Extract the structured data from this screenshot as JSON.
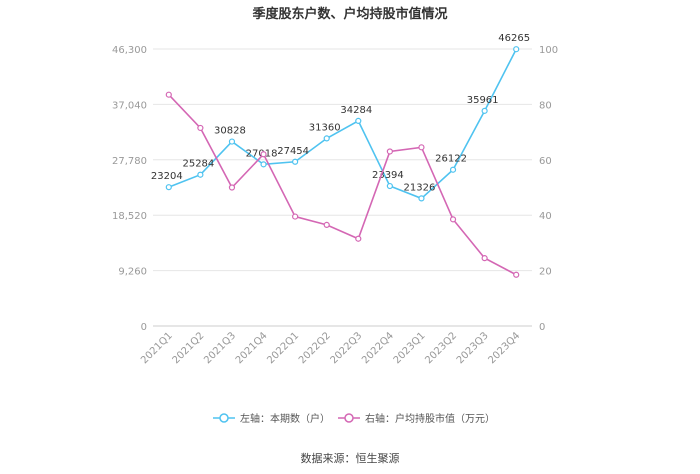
{
  "chart_data": {
    "type": "line",
    "title": "季度股东户数、户均持股市值情况",
    "categories": [
      "2021Q1",
      "2021Q2",
      "2021Q3",
      "2021Q4",
      "2022Q1",
      "2022Q2",
      "2022Q3",
      "2022Q4",
      "2023Q1",
      "2023Q2",
      "2023Q3",
      "2023Q4"
    ],
    "left_axis": {
      "ticks": [
        "0",
        "9,260",
        "18,520",
        "27,780",
        "37,040",
        "46,300"
      ],
      "ylim": [
        0,
        46300
      ]
    },
    "right_axis": {
      "ticks": [
        "0",
        "20",
        "40",
        "60",
        "80",
        "100"
      ],
      "ylim": [
        0,
        100
      ]
    },
    "series": [
      {
        "name": "左轴：本期数（户）",
        "axis": "left",
        "color": "#4fc3f0",
        "values": [
          23204,
          25284,
          30828,
          27018,
          27454,
          31360,
          34284,
          23394,
          21326,
          26122,
          35961,
          46265
        ],
        "labels": [
          "23204",
          "25284",
          "30828",
          "27018",
          "27454",
          "31360",
          "34284",
          "23394",
          "21326",
          "26122",
          "35961",
          "46265"
        ]
      },
      {
        "name": "右轴：户均持股市值（万元）",
        "axis": "right",
        "color": "#d467b4",
        "values": [
          83.5,
          71.5,
          50,
          62,
          39.5,
          36.5,
          31.5,
          63,
          64.5,
          38.5,
          24.5,
          18.5
        ]
      }
    ],
    "grid": "horizontal",
    "legend_position": "bottom"
  },
  "source_text": "数据来源：恒生聚源"
}
